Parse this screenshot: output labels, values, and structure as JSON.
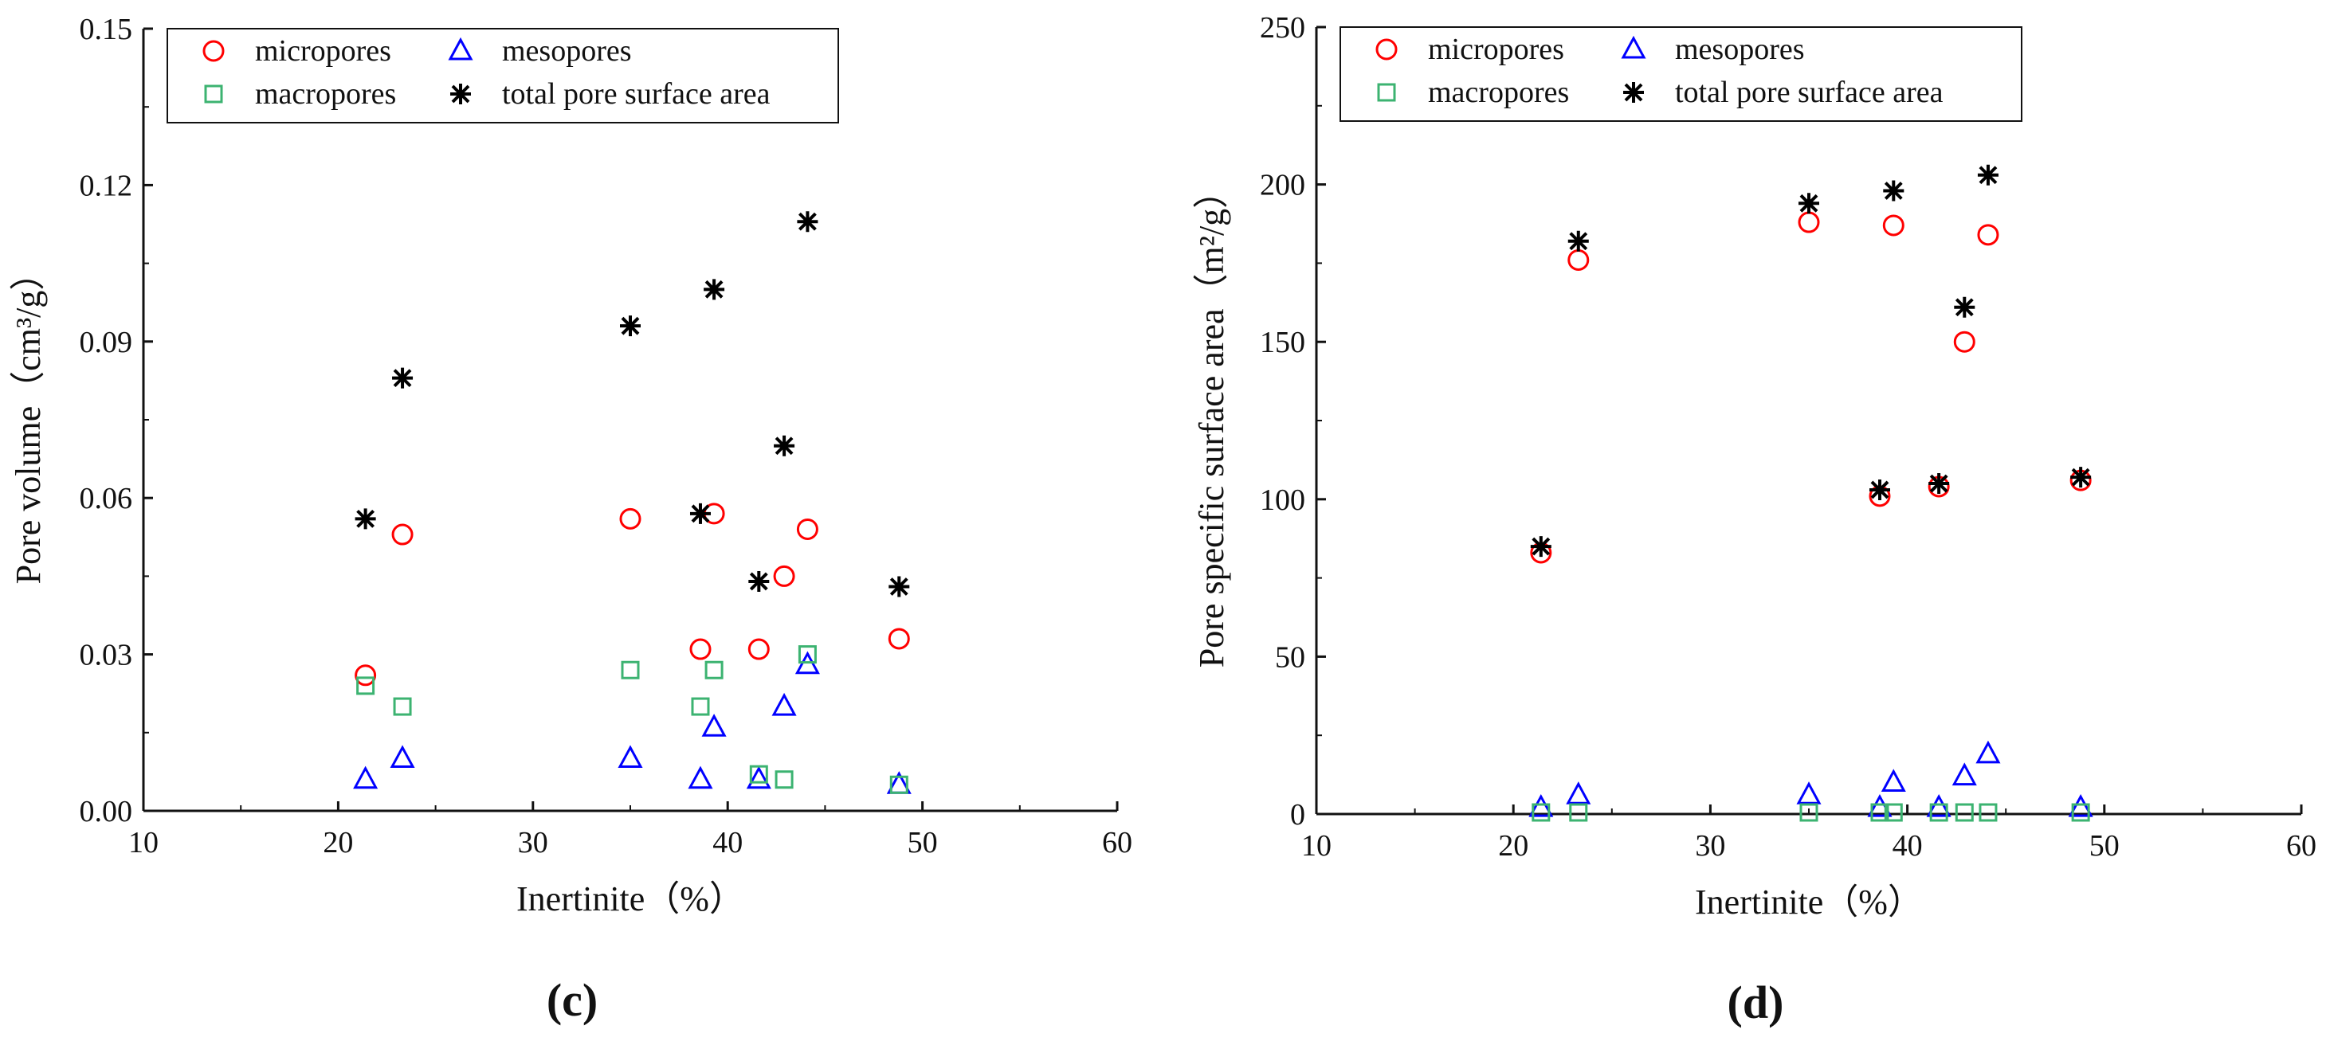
{
  "chart_data": [
    {
      "type": "scatter",
      "panel_label": "(c)",
      "xlabel": "Inertinite（%）",
      "ylabel": "Pore volume（cm³/g）",
      "xlim": [
        10,
        60
      ],
      "ylim": [
        0,
        0.15
      ],
      "xticks": [
        "10",
        "20",
        "30",
        "40",
        "50",
        "60"
      ],
      "yticks": [
        "0.00",
        "0.03",
        "0.06",
        "0.09",
        "0.12",
        "0.15"
      ],
      "legend": [
        "micropores",
        "mesopores",
        "macropores",
        "total pore surface area"
      ],
      "series": [
        {
          "name": "micropores",
          "marker": "circle",
          "color": "#ff0000",
          "x": [
            21.4,
            23.3,
            35.0,
            38.6,
            39.3,
            41.6,
            42.9,
            44.1,
            48.8
          ],
          "y": [
            0.026,
            0.053,
            0.056,
            0.031,
            0.057,
            0.031,
            0.045,
            0.054,
            0.033
          ]
        },
        {
          "name": "mesopores",
          "marker": "triangle",
          "color": "#0000ff",
          "x": [
            21.4,
            23.3,
            35.0,
            38.6,
            39.3,
            41.6,
            42.9,
            44.1,
            48.8
          ],
          "y": [
            0.006,
            0.01,
            0.01,
            0.006,
            0.016,
            0.006,
            0.02,
            0.028,
            0.005
          ]
        },
        {
          "name": "macropores",
          "marker": "square",
          "color": "#3cb371",
          "x": [
            21.4,
            23.3,
            35.0,
            38.6,
            39.3,
            41.6,
            42.9,
            44.1,
            48.8
          ],
          "y": [
            0.024,
            0.02,
            0.027,
            0.02,
            0.027,
            0.007,
            0.006,
            0.03,
            0.005
          ]
        },
        {
          "name": "total pore surface area",
          "marker": "star",
          "color": "#000000",
          "x": [
            21.4,
            23.3,
            35.0,
            38.6,
            39.3,
            41.6,
            42.9,
            44.1,
            48.8
          ],
          "y": [
            0.056,
            0.083,
            0.093,
            0.057,
            0.1,
            0.044,
            0.07,
            0.113,
            0.043
          ]
        }
      ]
    },
    {
      "type": "scatter",
      "panel_label": "(d)",
      "xlabel": "Inertinite（%）",
      "ylabel": "Pore specific surface area（m²/g）",
      "xlim": [
        10,
        60
      ],
      "ylim": [
        0,
        250
      ],
      "xticks": [
        "10",
        "20",
        "30",
        "40",
        "50",
        "60"
      ],
      "yticks": [
        "0",
        "50",
        "100",
        "150",
        "200",
        "250"
      ],
      "legend": [
        "micropores",
        "mesopores",
        "macropores",
        "total pore surface area"
      ],
      "series": [
        {
          "name": "micropores",
          "marker": "circle",
          "color": "#ff0000",
          "x": [
            21.4,
            23.3,
            35.0,
            38.6,
            39.3,
            41.6,
            42.9,
            44.1,
            48.8
          ],
          "y": [
            83,
            176,
            188,
            101,
            187,
            104,
            150,
            184,
            106
          ]
        },
        {
          "name": "mesopores",
          "marker": "triangle",
          "color": "#0000ff",
          "x": [
            21.4,
            23.3,
            35.0,
            38.6,
            39.3,
            41.6,
            42.9,
            44.1,
            48.8
          ],
          "y": [
            2,
            6,
            6,
            2,
            10,
            2,
            12,
            19,
            2
          ]
        },
        {
          "name": "macropores",
          "marker": "square",
          "color": "#3cb371",
          "x": [
            21.4,
            23.3,
            35.0,
            38.6,
            39.3,
            41.6,
            42.9,
            44.1,
            48.8
          ],
          "y": [
            0.5,
            0.5,
            0.5,
            0.5,
            0.5,
            0.5,
            0.5,
            0.5,
            0.5
          ]
        },
        {
          "name": "total pore surface area",
          "marker": "star",
          "color": "#000000",
          "x": [
            21.4,
            23.3,
            35.0,
            38.6,
            39.3,
            41.6,
            42.9,
            44.1,
            48.8
          ],
          "y": [
            85,
            182,
            194,
            103,
            198,
            105,
            161,
            203,
            107
          ]
        }
      ]
    }
  ]
}
